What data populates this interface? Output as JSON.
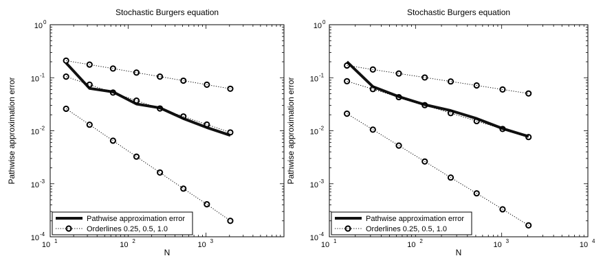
{
  "chart_data": [
    {
      "type": "line",
      "title": "Stochastic Burgers equation",
      "xlabel": "N",
      "ylabel": "Pathwise approximation error",
      "xscale": "log",
      "yscale": "log",
      "xlim": [
        10,
        10000
      ],
      "ylim": [
        0.0001,
        1
      ],
      "grid": false,
      "legend_position": "bottom-left",
      "x_tick_labels": [
        "10",
        "10",
        "10",
        ""
      ],
      "x_tick_exponents": [
        "1",
        "2",
        "3",
        ""
      ],
      "y_tick_labels": [
        "10",
        "10",
        "10",
        "10",
        "10"
      ],
      "y_tick_exponents": [
        "-4",
        "-3",
        "-2",
        "-1",
        "0"
      ],
      "x": [
        16,
        32,
        64,
        128,
        256,
        512,
        1024,
        2048
      ],
      "series": [
        {
          "name": "Pathwise approximation error",
          "style": "thick-solid",
          "values": [
            0.19,
            0.063,
            0.054,
            0.032,
            0.027,
            0.017,
            0.0115,
            0.0082
          ]
        },
        {
          "name": "Orderlines 0.25, 0.5, 1.0",
          "style": "dotted-circles",
          "values": [
            0.21,
            0.177,
            0.149,
            0.125,
            0.105,
            0.088,
            0.074,
            0.062
          ]
        },
        {
          "name": "",
          "style": "dotted-circles",
          "values": [
            0.105,
            0.074,
            0.0525,
            0.037,
            0.0263,
            0.0186,
            0.0131,
            0.0093
          ]
        },
        {
          "name": "",
          "style": "dotted-circles",
          "values": [
            0.026,
            0.013,
            0.0065,
            0.00325,
            0.00163,
            0.00081,
            0.00041,
            0.0002
          ]
        }
      ]
    },
    {
      "type": "line",
      "title": "Stochastic Burgers equation",
      "xlabel": "N",
      "ylabel": "Pathwise approximation error",
      "xscale": "log",
      "yscale": "log",
      "xlim": [
        10,
        10000
      ],
      "ylim": [
        0.0001,
        1
      ],
      "grid": false,
      "legend_position": "bottom-left",
      "x_tick_labels": [
        "10",
        "10",
        "10",
        "10"
      ],
      "x_tick_exponents": [
        "1",
        "2",
        "3",
        "4"
      ],
      "y_tick_labels": [
        "10",
        "10",
        "10",
        "10",
        "10"
      ],
      "y_tick_exponents": [
        "-4",
        "-3",
        "-2",
        "-1",
        "0"
      ],
      "x": [
        16,
        32,
        64,
        128,
        256,
        512,
        1024,
        2048
      ],
      "series": [
        {
          "name": "Pathwise approximation error",
          "style": "thick-solid",
          "values": [
            0.2,
            0.068,
            0.044,
            0.031,
            0.024,
            0.017,
            0.011,
            0.0078
          ]
        },
        {
          "name": "Orderlines 0.25, 0.5, 1.0",
          "style": "dotted-circles",
          "values": [
            0.17,
            0.143,
            0.12,
            0.101,
            0.085,
            0.0715,
            0.06,
            0.0505
          ]
        },
        {
          "name": "",
          "style": "dotted-circles",
          "values": [
            0.086,
            0.061,
            0.043,
            0.0304,
            0.0215,
            0.0152,
            0.0108,
            0.0076
          ]
        },
        {
          "name": "",
          "style": "dotted-circles",
          "values": [
            0.021,
            0.0105,
            0.00525,
            0.00263,
            0.00131,
            0.00066,
            0.00033,
            0.000164
          ]
        }
      ]
    }
  ]
}
